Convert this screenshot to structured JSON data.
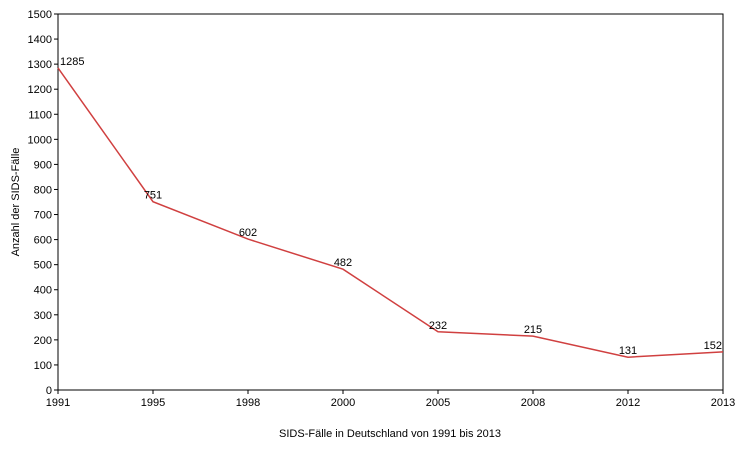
{
  "chart_data": {
    "type": "line",
    "title": "",
    "xlabel": "SIDS-Fälle in Deutschland von 1991 bis 2013",
    "ylabel": "Anzahl der SIDS-Fälle",
    "categories": [
      "1991",
      "1995",
      "1998",
      "2000",
      "2005",
      "2008",
      "2012",
      "2013"
    ],
    "series": [
      {
        "values": [
          1285,
          751,
          602,
          482,
          232,
          215,
          131,
          152
        ],
        "color": "#d04040"
      }
    ],
    "ylim": [
      0,
      1500
    ],
    "yticks": [
      0,
      100,
      200,
      300,
      400,
      500,
      600,
      700,
      800,
      900,
      1000,
      1100,
      1200,
      1300,
      1400,
      1500
    ],
    "grid": false,
    "legend": "none",
    "data_labels": true
  }
}
